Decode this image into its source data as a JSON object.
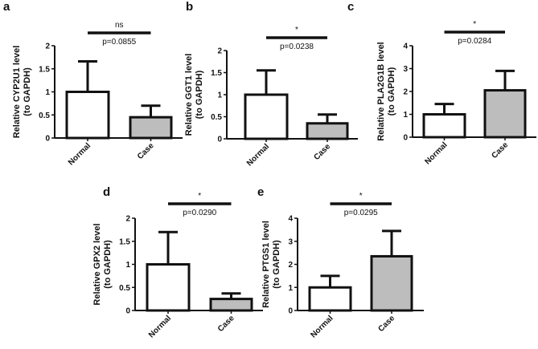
{
  "colors": {
    "normal_fill": "#ffffff",
    "case_fill": "#bdbdbd",
    "stroke": "#111111"
  },
  "chart_data": [
    {
      "panel": "a",
      "type": "bar",
      "categories": [
        "Normal",
        "Case"
      ],
      "values": [
        1.0,
        0.45
      ],
      "error_upper": [
        0.66,
        0.25
      ],
      "ylabel_line1": "Relative CYP2U1 level",
      "ylabel_line2": "(to GAPDH)",
      "ylim": [
        0,
        2.0
      ],
      "yticks": [
        0,
        0.5,
        1.0,
        1.5,
        2.0
      ],
      "ytick_labels": [
        "0.0",
        "0.5",
        "1.0",
        "1.5",
        "2.0"
      ],
      "significance": "ns",
      "p_value": "p=0.0855"
    },
    {
      "panel": "b",
      "type": "bar",
      "categories": [
        "Normal",
        "Case"
      ],
      "values": [
        1.0,
        0.35
      ],
      "error_upper": [
        0.55,
        0.2
      ],
      "ylabel_line1": "Relative GGT1 level",
      "ylabel_line2": "(to GAPDH)",
      "ylim": [
        0,
        2.0
      ],
      "yticks": [
        0,
        0.5,
        1.0,
        1.5,
        2.0
      ],
      "ytick_labels": [
        "0.0",
        "0.5",
        "1.0",
        "1.5",
        "2.0"
      ],
      "significance": "*",
      "p_value": "p=0.0238"
    },
    {
      "panel": "c",
      "type": "bar",
      "categories": [
        "Normal",
        "Case"
      ],
      "values": [
        1.0,
        2.05
      ],
      "error_upper": [
        0.45,
        0.85
      ],
      "ylabel_line1": "Relative PLA2G1B level",
      "ylabel_line2": "(to GAPDH)",
      "ylim": [
        0,
        4
      ],
      "yticks": [
        0,
        1,
        2,
        3,
        4
      ],
      "ytick_labels": [
        "0",
        "1",
        "2",
        "3",
        "4"
      ],
      "significance": "*",
      "p_value": "p=0.0284"
    },
    {
      "panel": "d",
      "type": "bar",
      "categories": [
        "Normal",
        "Case"
      ],
      "values": [
        1.0,
        0.25
      ],
      "error_upper": [
        0.7,
        0.12
      ],
      "ylabel_line1": "Relative GPX2 level",
      "ylabel_line2": "(to GAPDH)",
      "ylim": [
        0,
        2.0
      ],
      "yticks": [
        0,
        0.5,
        1.0,
        1.5,
        2.0
      ],
      "ytick_labels": [
        "0.0",
        "0.5",
        "1.0",
        "1.5",
        "2.0"
      ],
      "significance": "*",
      "p_value": "p=0.0290"
    },
    {
      "panel": "e",
      "type": "bar",
      "categories": [
        "Normal",
        "Case"
      ],
      "values": [
        1.0,
        2.35
      ],
      "error_upper": [
        0.5,
        1.1
      ],
      "ylabel_line1": "Relative PTGS1 level",
      "ylabel_line2": "(to GAPDH)",
      "ylim": [
        0,
        4
      ],
      "yticks": [
        0,
        1,
        2,
        3,
        4
      ],
      "ytick_labels": [
        "0",
        "1",
        "2",
        "3",
        "4"
      ],
      "significance": "*",
      "p_value": "p=0.0295"
    }
  ]
}
